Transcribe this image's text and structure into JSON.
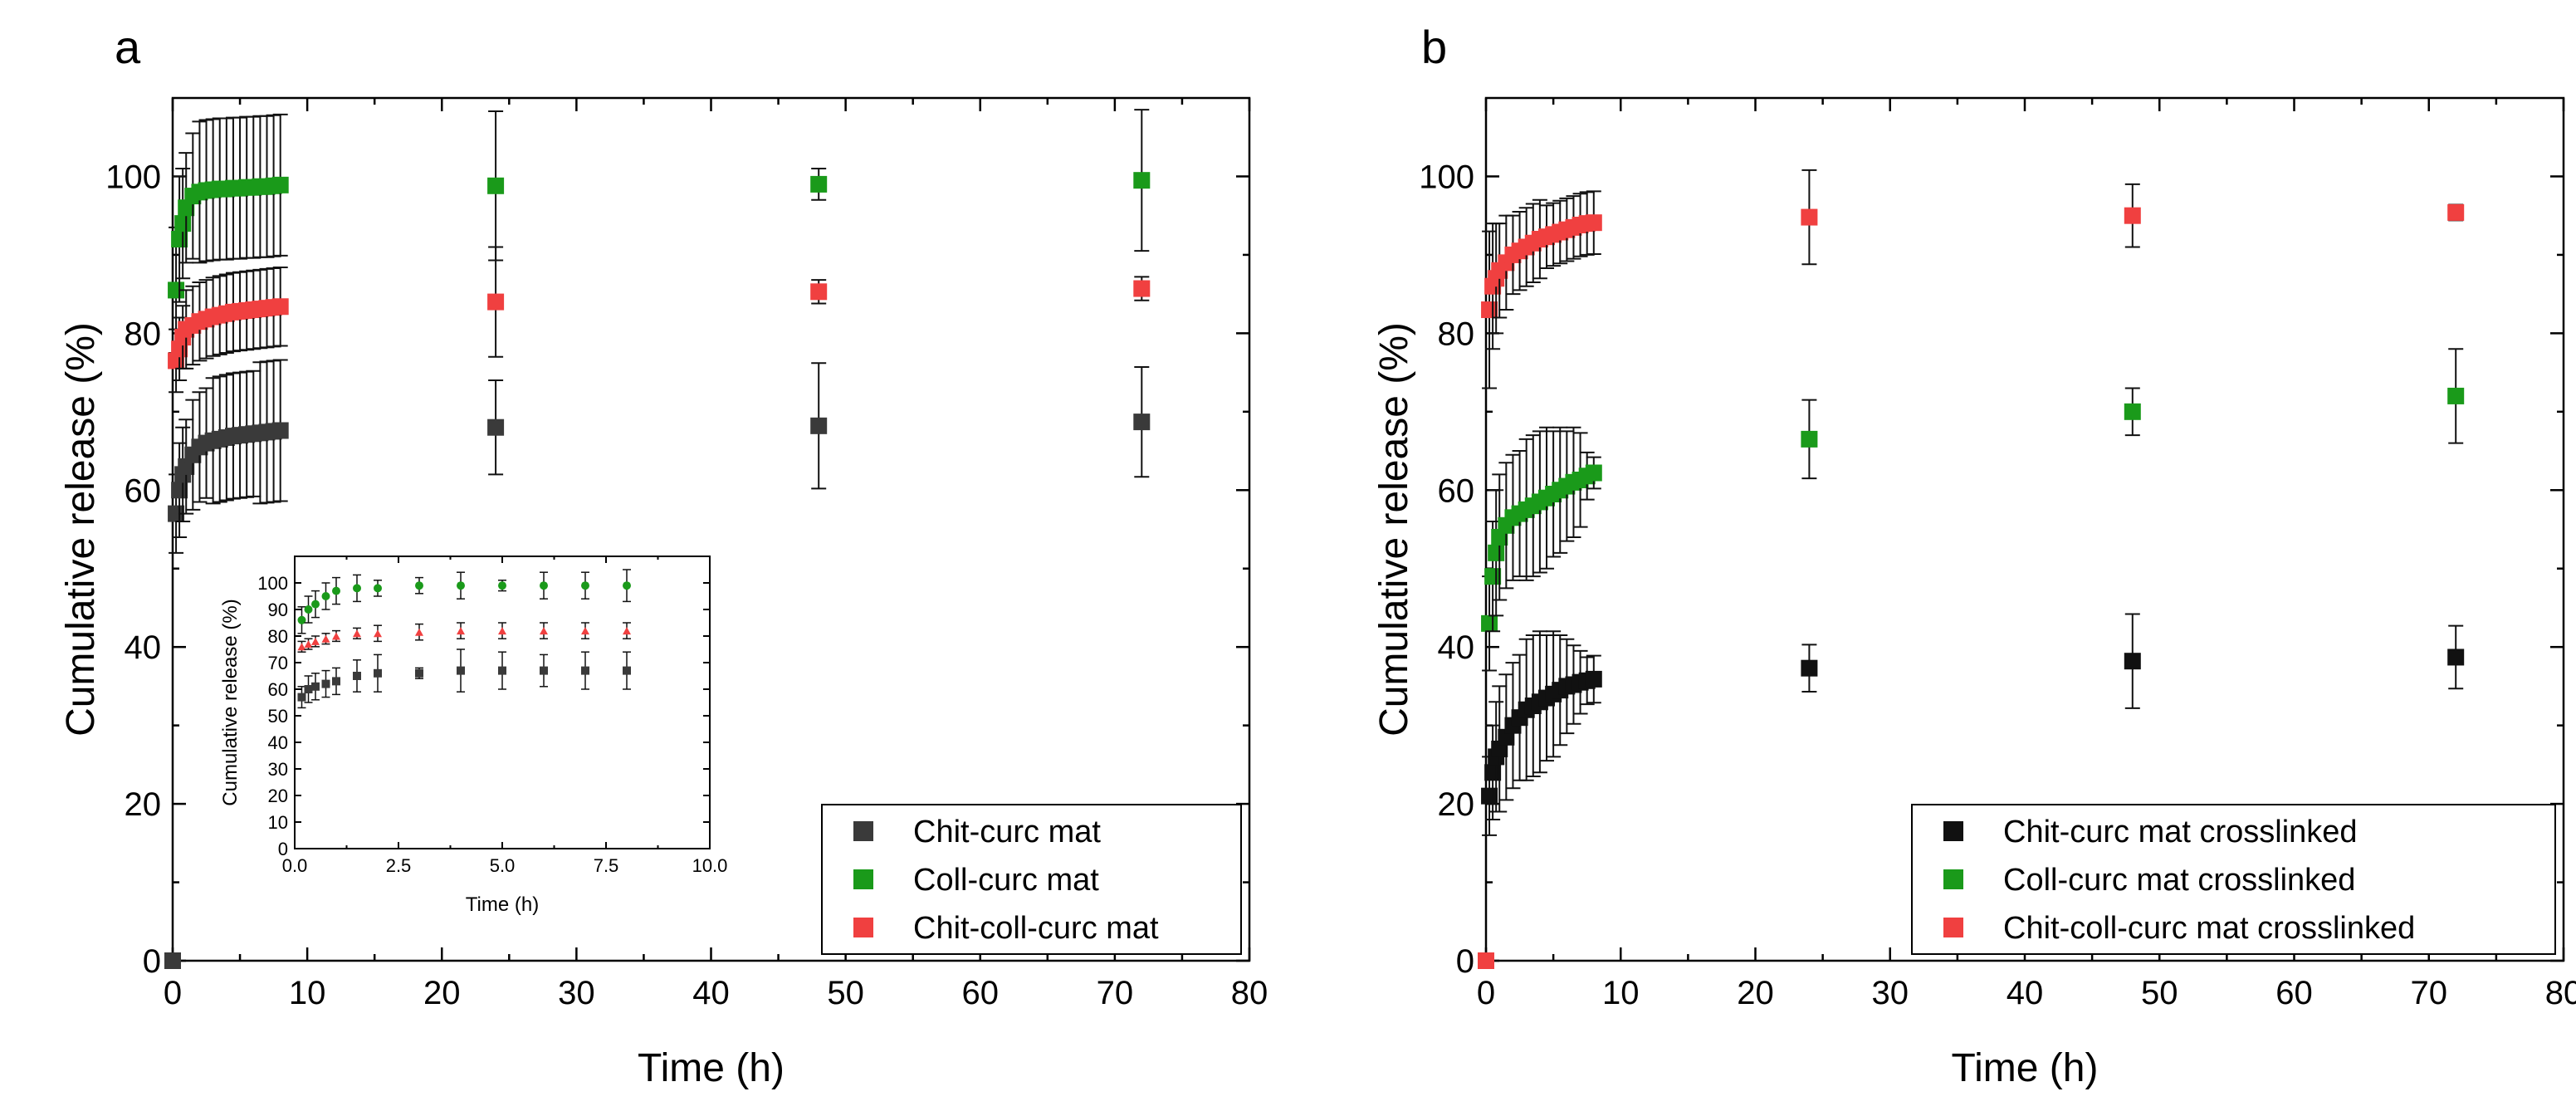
{
  "colors": {
    "black": "#222222",
    "darkgray": "#3a3a3a",
    "green": "#1a9a1a",
    "red": "#f04040"
  },
  "chart_data": [
    {
      "panel": "a",
      "type": "scatter",
      "xlabel": "Time (h)",
      "ylabel": "Cumulative release (%)",
      "xlim": [
        0,
        80
      ],
      "ylim": [
        0,
        110
      ],
      "xticks": [
        0,
        10,
        20,
        30,
        40,
        50,
        60,
        70,
        80
      ],
      "yticks": [
        0,
        20,
        40,
        60,
        80,
        100
      ],
      "legend_position": "bottom-right",
      "series": [
        {
          "name": "Chit-curc mat",
          "color": "#3a3a3a",
          "marker": "square",
          "points": [
            {
              "x": 0,
              "y": 0,
              "e": 0
            },
            {
              "x": 0.25,
              "y": 57,
              "e": 5
            },
            {
              "x": 0.5,
              "y": 60,
              "e": 6
            },
            {
              "x": 0.75,
              "y": 62,
              "e": 6
            },
            {
              "x": 1,
              "y": 63,
              "e": 6
            },
            {
              "x": 1.5,
              "y": 64.5,
              "e": 7
            },
            {
              "x": 2,
              "y": 65.5,
              "e": 7
            },
            {
              "x": 2.5,
              "y": 66,
              "e": 7
            },
            {
              "x": 3,
              "y": 66.3,
              "e": 8
            },
            {
              "x": 3.5,
              "y": 66.5,
              "e": 8
            },
            {
              "x": 4,
              "y": 66.7,
              "e": 8
            },
            {
              "x": 4.5,
              "y": 66.9,
              "e": 8
            },
            {
              "x": 5,
              "y": 67,
              "e": 8
            },
            {
              "x": 5.5,
              "y": 67.1,
              "e": 8
            },
            {
              "x": 6,
              "y": 67.2,
              "e": 8
            },
            {
              "x": 6.5,
              "y": 67.3,
              "e": 9
            },
            {
              "x": 7,
              "y": 67.4,
              "e": 9
            },
            {
              "x": 7.5,
              "y": 67.5,
              "e": 9
            },
            {
              "x": 8,
              "y": 67.6,
              "e": 9
            },
            {
              "x": 24,
              "y": 68,
              "e": 6
            },
            {
              "x": 48,
              "y": 68.2,
              "e": 8
            },
            {
              "x": 72,
              "y": 68.7,
              "e": 7
            }
          ]
        },
        {
          "name": "Coll-curc mat",
          "color": "#1a9a1a",
          "marker": "square",
          "points": [
            {
              "x": 0.25,
              "y": 85.5,
              "e": 8
            },
            {
              "x": 0.5,
              "y": 92,
              "e": 8
            },
            {
              "x": 0.75,
              "y": 94,
              "e": 7
            },
            {
              "x": 1,
              "y": 96,
              "e": 7
            },
            {
              "x": 1.5,
              "y": 97.5,
              "e": 8
            },
            {
              "x": 2,
              "y": 98,
              "e": 9
            },
            {
              "x": 2.5,
              "y": 98.2,
              "e": 9
            },
            {
              "x": 3,
              "y": 98.3,
              "e": 9
            },
            {
              "x": 3.5,
              "y": 98.4,
              "e": 9
            },
            {
              "x": 4,
              "y": 98.4,
              "e": 9
            },
            {
              "x": 4.5,
              "y": 98.5,
              "e": 9
            },
            {
              "x": 5,
              "y": 98.5,
              "e": 9
            },
            {
              "x": 5.5,
              "y": 98.6,
              "e": 9
            },
            {
              "x": 6,
              "y": 98.6,
              "e": 9
            },
            {
              "x": 6.5,
              "y": 98.7,
              "e": 9
            },
            {
              "x": 7,
              "y": 98.7,
              "e": 9
            },
            {
              "x": 7.5,
              "y": 98.8,
              "e": 9
            },
            {
              "x": 8,
              "y": 98.9,
              "e": 9
            },
            {
              "x": 24,
              "y": 98.8,
              "e": 9.5
            },
            {
              "x": 48,
              "y": 99,
              "e": 2
            },
            {
              "x": 72,
              "y": 99.5,
              "e": 9
            }
          ]
        },
        {
          "name": "Chit-coll-curc mat",
          "color": "#f04040",
          "marker": "square",
          "points": [
            {
              "x": 0.25,
              "y": 76.5,
              "e": 4
            },
            {
              "x": 0.5,
              "y": 78,
              "e": 4
            },
            {
              "x": 0.75,
              "y": 79.5,
              "e": 4
            },
            {
              "x": 1,
              "y": 80.5,
              "e": 5
            },
            {
              "x": 1.5,
              "y": 81,
              "e": 5
            },
            {
              "x": 2,
              "y": 81.5,
              "e": 5
            },
            {
              "x": 2.5,
              "y": 81.8,
              "e": 5
            },
            {
              "x": 3,
              "y": 82.1,
              "e": 5
            },
            {
              "x": 3.5,
              "y": 82.3,
              "e": 5
            },
            {
              "x": 4,
              "y": 82.5,
              "e": 5
            },
            {
              "x": 4.5,
              "y": 82.7,
              "e": 5
            },
            {
              "x": 5,
              "y": 82.8,
              "e": 5
            },
            {
              "x": 5.5,
              "y": 82.9,
              "e": 5
            },
            {
              "x": 6,
              "y": 83,
              "e": 5
            },
            {
              "x": 6.5,
              "y": 83.1,
              "e": 5
            },
            {
              "x": 7,
              "y": 83.2,
              "e": 5
            },
            {
              "x": 7.5,
              "y": 83.3,
              "e": 5
            },
            {
              "x": 8,
              "y": 83.4,
              "e": 5
            },
            {
              "x": 24,
              "y": 84,
              "e": 7
            },
            {
              "x": 48,
              "y": 85.3,
              "e": 1.5
            },
            {
              "x": 72,
              "y": 85.7,
              "e": 1.5
            }
          ]
        }
      ],
      "inset": {
        "type": "scatter",
        "xlabel": "Time (h)",
        "ylabel": "Cumulative release (%)",
        "xlim": [
          0,
          10
        ],
        "ylim": [
          0,
          110
        ],
        "xticks": [
          "0.0",
          "2.5",
          "5.0",
          "7.5",
          "10.0"
        ],
        "yticks": [
          0,
          10,
          20,
          30,
          40,
          50,
          60,
          70,
          80,
          90,
          100
        ],
        "series": [
          {
            "color": "#3a3a3a",
            "marker": "square",
            "points": [
              {
                "x": 0.17,
                "y": 57,
                "e": 4
              },
              {
                "x": 0.33,
                "y": 60,
                "e": 5
              },
              {
                "x": 0.5,
                "y": 61,
                "e": 5
              },
              {
                "x": 0.75,
                "y": 62,
                "e": 5
              },
              {
                "x": 1,
                "y": 63,
                "e": 5
              },
              {
                "x": 1.5,
                "y": 65,
                "e": 6
              },
              {
                "x": 2,
                "y": 66,
                "e": 7
              },
              {
                "x": 3,
                "y": 66,
                "e": 2
              },
              {
                "x": 4,
                "y": 67,
                "e": 8
              },
              {
                "x": 5,
                "y": 67,
                "e": 7
              },
              {
                "x": 6,
                "y": 67,
                "e": 6
              },
              {
                "x": 7,
                "y": 67,
                "e": 7
              },
              {
                "x": 8,
                "y": 67,
                "e": 7
              }
            ]
          },
          {
            "color": "#1a9a1a",
            "marker": "circle",
            "points": [
              {
                "x": 0.17,
                "y": 86,
                "e": 5
              },
              {
                "x": 0.33,
                "y": 90,
                "e": 5
              },
              {
                "x": 0.5,
                "y": 92,
                "e": 5
              },
              {
                "x": 0.75,
                "y": 95,
                "e": 5
              },
              {
                "x": 1,
                "y": 97,
                "e": 5
              },
              {
                "x": 1.5,
                "y": 98,
                "e": 5
              },
              {
                "x": 2,
                "y": 98,
                "e": 3
              },
              {
                "x": 3,
                "y": 99,
                "e": 3
              },
              {
                "x": 4,
                "y": 99,
                "e": 5
              },
              {
                "x": 5,
                "y": 99,
                "e": 2
              },
              {
                "x": 6,
                "y": 99,
                "e": 5
              },
              {
                "x": 7,
                "y": 99,
                "e": 5
              },
              {
                "x": 8,
                "y": 99,
                "e": 6
              }
            ]
          },
          {
            "color": "#f04040",
            "marker": "triangle",
            "points": [
              {
                "x": 0.17,
                "y": 76,
                "e": 2
              },
              {
                "x": 0.33,
                "y": 77,
                "e": 2
              },
              {
                "x": 0.5,
                "y": 78,
                "e": 2
              },
              {
                "x": 0.75,
                "y": 79,
                "e": 2
              },
              {
                "x": 1,
                "y": 80,
                "e": 2
              },
              {
                "x": 1.5,
                "y": 81,
                "e": 2
              },
              {
                "x": 2,
                "y": 81,
                "e": 3
              },
              {
                "x": 3,
                "y": 81.5,
                "e": 3
              },
              {
                "x": 4,
                "y": 82,
                "e": 3
              },
              {
                "x": 5,
                "y": 82,
                "e": 3
              },
              {
                "x": 6,
                "y": 82,
                "e": 3
              },
              {
                "x": 7,
                "y": 82,
                "e": 3
              },
              {
                "x": 8,
                "y": 82,
                "e": 3
              }
            ]
          }
        ]
      }
    },
    {
      "panel": "b",
      "type": "scatter",
      "xlabel": "Time (h)",
      "ylabel": "Cumulative release (%)",
      "xlim": [
        0,
        80
      ],
      "ylim": [
        0,
        110
      ],
      "xticks": [
        0,
        10,
        20,
        30,
        40,
        50,
        60,
        70,
        80
      ],
      "yticks": [
        0,
        20,
        40,
        60,
        80,
        100
      ],
      "legend_position": "bottom-right",
      "series": [
        {
          "name": "Chit-curc mat crosslinked",
          "color": "#111111",
          "marker": "square",
          "points": [
            {
              "x": 0,
              "y": 0,
              "e": 0
            },
            {
              "x": 0.25,
              "y": 21,
              "e": 5
            },
            {
              "x": 0.5,
              "y": 24,
              "e": 6
            },
            {
              "x": 0.75,
              "y": 26,
              "e": 7
            },
            {
              "x": 1,
              "y": 27,
              "e": 8
            },
            {
              "x": 1.5,
              "y": 28.5,
              "e": 8
            },
            {
              "x": 2,
              "y": 30,
              "e": 8
            },
            {
              "x": 2.5,
              "y": 31,
              "e": 8
            },
            {
              "x": 3,
              "y": 32,
              "e": 9
            },
            {
              "x": 3.5,
              "y": 32.5,
              "e": 9
            },
            {
              "x": 4,
              "y": 33,
              "e": 9
            },
            {
              "x": 4.5,
              "y": 33.5,
              "e": 8
            },
            {
              "x": 5,
              "y": 34,
              "e": 8
            },
            {
              "x": 5.5,
              "y": 34.5,
              "e": 7
            },
            {
              "x": 6,
              "y": 35,
              "e": 6
            },
            {
              "x": 6.5,
              "y": 35.2,
              "e": 5
            },
            {
              "x": 7,
              "y": 35.5,
              "e": 4
            },
            {
              "x": 7.5,
              "y": 35.7,
              "e": 3
            },
            {
              "x": 8,
              "y": 35.9,
              "e": 3
            },
            {
              "x": 24,
              "y": 37.3,
              "e": 3
            },
            {
              "x": 48,
              "y": 38.2,
              "e": 6
            },
            {
              "x": 72,
              "y": 38.7,
              "e": 4
            }
          ]
        },
        {
          "name": "Coll-curc mat crosslinked",
          "color": "#1a9a1a",
          "marker": "square",
          "points": [
            {
              "x": 0.25,
              "y": 43,
              "e": 6
            },
            {
              "x": 0.5,
              "y": 49,
              "e": 7
            },
            {
              "x": 0.75,
              "y": 52,
              "e": 8
            },
            {
              "x": 1,
              "y": 54,
              "e": 8
            },
            {
              "x": 1.5,
              "y": 55.5,
              "e": 8
            },
            {
              "x": 2,
              "y": 56.5,
              "e": 8
            },
            {
              "x": 2.5,
              "y": 57,
              "e": 8
            },
            {
              "x": 3,
              "y": 57.5,
              "e": 9
            },
            {
              "x": 3.5,
              "y": 58,
              "e": 9
            },
            {
              "x": 4,
              "y": 58.5,
              "e": 9
            },
            {
              "x": 4.5,
              "y": 59,
              "e": 9
            },
            {
              "x": 5,
              "y": 59.5,
              "e": 8
            },
            {
              "x": 5.5,
              "y": 60,
              "e": 8
            },
            {
              "x": 6,
              "y": 60.5,
              "e": 7
            },
            {
              "x": 6.5,
              "y": 61,
              "e": 7
            },
            {
              "x": 7,
              "y": 61.3,
              "e": 6
            },
            {
              "x": 7.5,
              "y": 61.8,
              "e": 3
            },
            {
              "x": 8,
              "y": 62.2,
              "e": 2
            },
            {
              "x": 24,
              "y": 66.5,
              "e": 5
            },
            {
              "x": 48,
              "y": 70,
              "e": 3
            },
            {
              "x": 72,
              "y": 72,
              "e": 6
            }
          ]
        },
        {
          "name": "Chit-coll-curc mat crosslinked",
          "color": "#f04040",
          "marker": "square",
          "points": [
            {
              "x": 0,
              "y": 0,
              "e": 0
            },
            {
              "x": 0.25,
              "y": 83,
              "e": 10
            },
            {
              "x": 0.5,
              "y": 86,
              "e": 8
            },
            {
              "x": 0.75,
              "y": 87,
              "e": 7
            },
            {
              "x": 1,
              "y": 88,
              "e": 6
            },
            {
              "x": 1.5,
              "y": 89,
              "e": 6
            },
            {
              "x": 2,
              "y": 90,
              "e": 5
            },
            {
              "x": 2.5,
              "y": 90.5,
              "e": 5
            },
            {
              "x": 3,
              "y": 91,
              "e": 5
            },
            {
              "x": 3.5,
              "y": 91.5,
              "e": 5
            },
            {
              "x": 4,
              "y": 92,
              "e": 5
            },
            {
              "x": 4.5,
              "y": 92.3,
              "e": 4
            },
            {
              "x": 5,
              "y": 92.6,
              "e": 4
            },
            {
              "x": 5.5,
              "y": 92.9,
              "e": 4
            },
            {
              "x": 6,
              "y": 93.2,
              "e": 4
            },
            {
              "x": 6.5,
              "y": 93.5,
              "e": 4
            },
            {
              "x": 7,
              "y": 93.8,
              "e": 4
            },
            {
              "x": 7.5,
              "y": 94,
              "e": 4
            },
            {
              "x": 8,
              "y": 94.1,
              "e": 4
            },
            {
              "x": 24,
              "y": 94.8,
              "e": 6
            },
            {
              "x": 48,
              "y": 95,
              "e": 4
            },
            {
              "x": 72,
              "y": 95.4,
              "e": 1
            }
          ]
        }
      ]
    }
  ]
}
